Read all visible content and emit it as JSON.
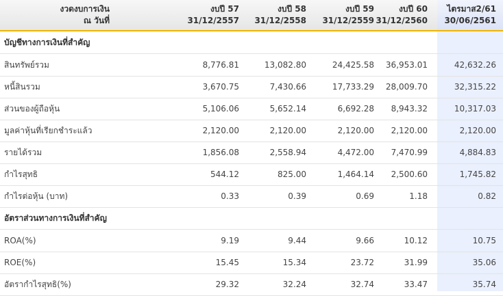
{
  "header": {
    "col0": [
      "งวดงบการเงิน",
      "ณ วันที่"
    ],
    "cols": [
      {
        "l1": "งบปี 57",
        "l2": "31/12/2557"
      },
      {
        "l1": "งบปี 58",
        "l2": "31/12/2558"
      },
      {
        "l1": "งบปี 59",
        "l2": "31/12/2559"
      },
      {
        "l1": "งบปี 60",
        "l2": "31/12/2560"
      },
      {
        "l1": "ไตรมาส2/61",
        "l2": "30/06/2561"
      }
    ]
  },
  "sections": [
    {
      "title": "บัญชีทางการเงินที่สำคัญ",
      "rows": [
        {
          "label": "สินทรัพย์รวม",
          "values": [
            "8,776.81",
            "13,082.80",
            "24,425.58",
            "36,953.01",
            "42,632.26"
          ]
        },
        {
          "label": "หนี้สินรวม",
          "values": [
            "3,670.75",
            "7,430.66",
            "17,733.29",
            "28,009.70",
            "32,315.22"
          ]
        },
        {
          "label": "ส่วนของผู้ถือหุ้น",
          "values": [
            "5,106.06",
            "5,652.14",
            "6,692.28",
            "8,943.32",
            "10,317.03"
          ]
        },
        {
          "label": "มูลค่าหุ้นที่เรียกชำระแล้ว",
          "values": [
            "2,120.00",
            "2,120.00",
            "2,120.00",
            "2,120.00",
            "2,120.00"
          ]
        },
        {
          "label": "รายได้รวม",
          "values": [
            "1,856.08",
            "2,558.94",
            "4,472.00",
            "7,470.99",
            "4,884.83"
          ]
        },
        {
          "label": "กำไรสุทธิ",
          "values": [
            "544.12",
            "825.00",
            "1,464.14",
            "2,500.60",
            "1,745.82"
          ]
        },
        {
          "label": "กำไรต่อหุ้น (บาท)",
          "values": [
            "0.33",
            "0.39",
            "0.69",
            "1.18",
            "0.82"
          ]
        }
      ]
    },
    {
      "title": "อัตราส่วนทางการเงินที่สำคัญ",
      "rows": [
        {
          "label": "ROA(%)",
          "values": [
            "9.19",
            "9.44",
            "9.66",
            "10.12",
            "10.75"
          ]
        },
        {
          "label": "ROE(%)",
          "values": [
            "15.45",
            "15.34",
            "23.72",
            "31.99",
            "35.06"
          ]
        },
        {
          "label": "อัตรากำไรสุทธิ(%)",
          "values": [
            "29.32",
            "32.24",
            "32.74",
            "33.47",
            "35.74"
          ]
        }
      ]
    }
  ],
  "colors": {
    "header_border": "#f0b400",
    "highlight_column": "#eaf0fd"
  }
}
